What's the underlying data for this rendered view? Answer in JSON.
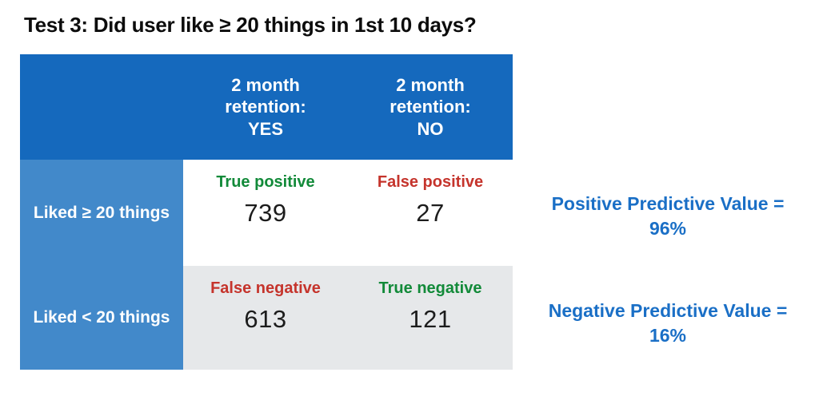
{
  "title": "Test 3: Did user like ≥ 20 things in 1st 10 days?",
  "matrix": {
    "column_headers": [
      {
        "text": "2 month\nretention:\nYES"
      },
      {
        "text": "2 month\nretention:\nNO"
      }
    ],
    "row_headers": [
      {
        "text": "Liked ≥ 20 things"
      },
      {
        "text": "Liked < 20 things"
      }
    ],
    "cells": [
      {
        "label": "True positive",
        "value": "739",
        "outcome": "true-positive"
      },
      {
        "label": "False positive",
        "value": "27",
        "outcome": "false-positive"
      },
      {
        "label": "False negative",
        "value": "613",
        "outcome": "false-negative"
      },
      {
        "label": "True negative",
        "value": "121",
        "outcome": "true-negative"
      }
    ]
  },
  "annotations": [
    {
      "label": "Positive Predictive Value =",
      "value": "96%"
    },
    {
      "label": "Negative Predictive Value =",
      "value": "16%"
    }
  ],
  "colors": {
    "header_bg": "#1569bd",
    "row_header_bg": "#4289ca",
    "row1_bg": "#ffffff",
    "row2_bg": "#e6e8ea",
    "true_label": "#128a39",
    "false_label": "#c5342c",
    "annotation_text": "#1a6fc6",
    "value_text": "#1c1c1c",
    "title_text": "#0c0c0c"
  }
}
